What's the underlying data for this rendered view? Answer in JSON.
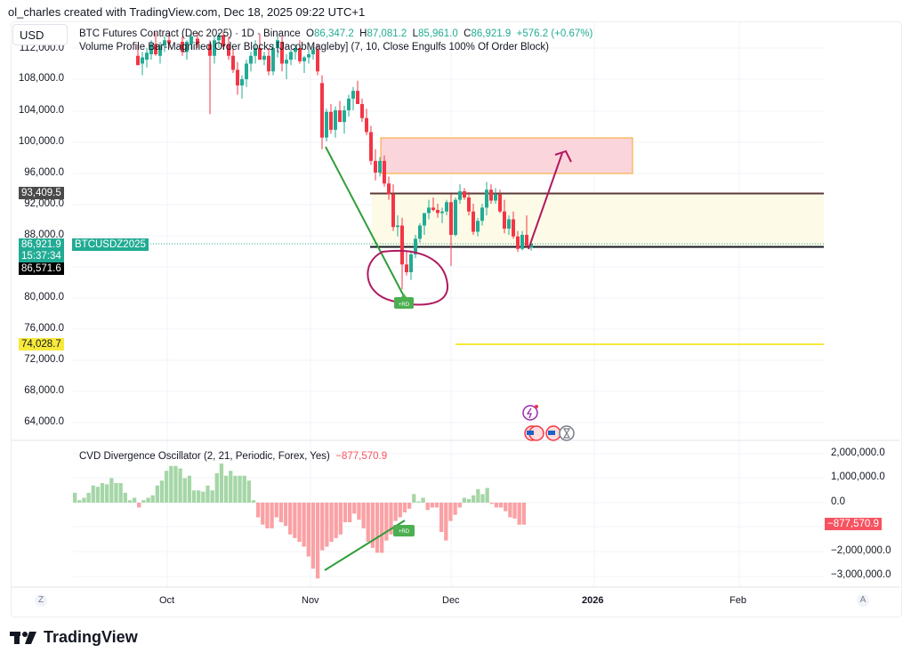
{
  "credit": "ol_charles created with TradingView.com, Dec 18, 2025 09:22 UTC+1",
  "currency_button": "USD",
  "legend": {
    "symbol_line": "BTC Futures Contract (Dec 2025) · 1D · Binance",
    "open_label": "O",
    "open": "86,347.2",
    "high_label": "H",
    "high": "87,081.2",
    "low_label": "L",
    "low": "85,961.0",
    "close_label": "C",
    "close": "86,921.9",
    "change": "+576.2 (+0.67%)",
    "indicator_line": "Volume Profile Bar-Magnified Order Blocks [JacobMagleby] (7, 10, Close Engulfs 100% Of Order Block)"
  },
  "price_axis": {
    "ticks": [
      "112,000.0",
      "108,000.0",
      "104,000.0",
      "100,000.0",
      "96,000.0",
      "92,000.0",
      "88,000.0",
      "80,000.0",
      "76,000.0",
      "72,000.0",
      "68,000.0",
      "64,000.0"
    ],
    "tags": {
      "resistance": "93,409.5",
      "last_price": "86,921.9",
      "countdown": "15:37:34",
      "symbol": "BTCUSDZ2025",
      "support": "86,571.6",
      "yellow_level": "74,028.7"
    }
  },
  "oscillator": {
    "title": "CVD Divergence Oscillator (2, 21, Periodic, Forex, Yes)",
    "value": "−877,570.9",
    "axis_ticks": [
      "2,000,000.0",
      "1,000,000.0",
      "0.0",
      "−2,000,000.0",
      "−3,000,000.0"
    ],
    "value_tag": "−877,570.9",
    "divergence_label": "+RD"
  },
  "time_axis": {
    "ticks": [
      "Oct",
      "Nov",
      "Dec",
      "2026",
      "Feb"
    ],
    "left_button": "Z",
    "right_button": "A"
  },
  "annotations": {
    "price_divergence_label": "+RD"
  },
  "brand": "TradingView",
  "colors": {
    "up": "#22ab94",
    "down": "#f23645",
    "osc_up": "#a5d6a7",
    "osc_down": "#faa1a4",
    "divergence_line": "#2e9e3a",
    "drawing": "#b0195f",
    "order_block_fill": "#fbd5dc",
    "order_block_border": "#f5a623",
    "range_fill": "#fdfbe7",
    "yellow_level": "#f7e93c"
  },
  "chart_data": [
    {
      "type": "candlestick",
      "title": "BTC Futures Contract (Dec 2025) · 1D · Binance",
      "ylabel": "USD",
      "ylim": [
        62000,
        114000
      ],
      "x_ticks": [
        "Oct",
        "Nov",
        "Dec",
        "2026",
        "Feb"
      ],
      "last": {
        "open": 86347.2,
        "high": 87081.2,
        "low": 85961.0,
        "close": 86921.9,
        "change": 576.2,
        "change_pct": 0.67
      },
      "levels": {
        "resistance": 93409.5,
        "support": 86571.6,
        "yellow": 74028.7,
        "order_block_top": 100600,
        "order_block_bottom": 96200
      },
      "annotations": [
        "+RD bullish divergence near 80,000 (late Nov)",
        "projected arrow from ~87,000 to ~98,000"
      ]
    },
    {
      "type": "bar",
      "title": "CVD Divergence Oscillator (2, 21, Periodic, Forex, Yes)",
      "ylim": [
        -3300000,
        2200000
      ],
      "y_ticks": [
        2000000,
        1000000,
        0,
        -2000000,
        -3000000
      ],
      "last_value": -877570.9,
      "values": [
        400000,
        100000,
        200000,
        400000,
        700000,
        650000,
        800000,
        750000,
        1000000,
        800000,
        800000,
        400000,
        100000,
        200000,
        -200000,
        100000,
        200000,
        300000,
        700000,
        900000,
        1300000,
        1500000,
        1500000,
        1400000,
        1000000,
        1100000,
        500000,
        500000,
        450000,
        700000,
        500000,
        1200000,
        1600000,
        1100000,
        1300000,
        1100000,
        1100000,
        1100000,
        900000,
        100000,
        -600000,
        -900000,
        -1050000,
        -1050000,
        -600000,
        -800000,
        -950000,
        -1300000,
        -1450000,
        -1600000,
        -1800000,
        -2200000,
        -2700000,
        -3100000,
        -1950000,
        -1800000,
        -1600000,
        -1450000,
        -1300000,
        -800000,
        -800000,
        -450000,
        -700000,
        -1050000,
        -1600000,
        -1850000,
        -2050000,
        -2050000,
        -1550000,
        -1300000,
        -750000,
        -600000,
        -400000,
        -250000,
        350000,
        50000,
        200000,
        -300000,
        -200000,
        -200000,
        -1200000,
        -1550000,
        -750000,
        -500000,
        -200000,
        200000,
        150000,
        300000,
        550000,
        350000,
        600000,
        -50000,
        -200000,
        -200000,
        -350000,
        -600000,
        -650000,
        -900000,
        -900000
      ]
    }
  ]
}
